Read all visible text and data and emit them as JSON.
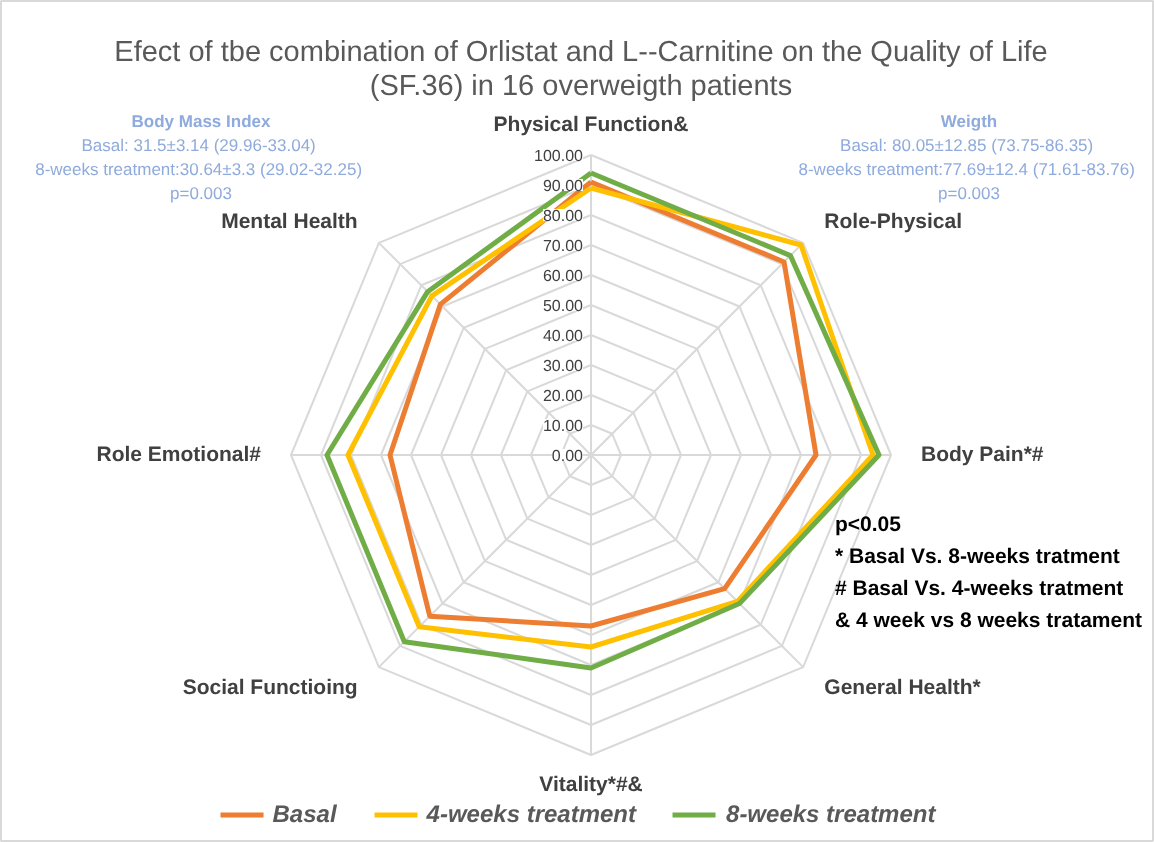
{
  "chart_data": {
    "type": "radar",
    "title": "Efect of tbe combination of Orlistat and L--Carnitine on the Quality of Life\n(SF.36) in 16 overweigth patients",
    "categories": [
      "Physical Function&",
      "Role-Physical",
      "Body Pain*#",
      "General Health*",
      "Vitality*#&",
      "Social Functioing",
      "Role Emotional#",
      "Mental Health"
    ],
    "series": [
      {
        "name": "Basal",
        "color": "#ed7d31",
        "values": [
          91,
          91,
          75,
          63,
          57,
          76,
          67,
          71
        ]
      },
      {
        "name": "4-weeks treatment",
        "color": "#ffc000",
        "values": [
          89,
          99,
          94,
          69,
          64,
          81,
          81,
          75
        ]
      },
      {
        "name": "8-weeks treatment",
        "color": "#70ad47",
        "values": [
          94,
          94,
          96,
          70,
          71,
          88,
          88,
          77
        ]
      }
    ],
    "ylim": [
      0,
      100
    ],
    "yticks": [
      {
        "value": 0,
        "label": "0.00"
      },
      {
        "value": 10,
        "label": "10.00"
      },
      {
        "value": 20,
        "label": "20.00"
      },
      {
        "value": 30,
        "label": "30.00"
      },
      {
        "value": 40,
        "label": "40.00"
      },
      {
        "value": 50,
        "label": "50.00"
      },
      {
        "value": 60,
        "label": "60.00"
      },
      {
        "value": 70,
        "label": "70.00"
      },
      {
        "value": 80,
        "label": "80.00"
      },
      {
        "value": 90,
        "label": "90.00"
      },
      {
        "value": 100,
        "label": "100.00"
      }
    ],
    "grid": true,
    "legend": "bottom",
    "marker": "none",
    "line_style": "solid",
    "annotations": [
      "Body Mass Index\nBasal: 31.5±3.14  (29.96-33.04)\n8-weeks treatment:30.64±3.3  (29.02-32.25)\np=0.003",
      "Weigth\nBasal: 80.05±12.85  (73.75-86.35)\n8-weeks treatment:77.69±12.4  (71.61-83.76)\np=0.003",
      "p<0.05\n*  Basal Vs. 8-weeks tratment\n#  Basal Vs. 4-weeks tratment\n& 4 week vs 8 weeks tratament"
    ]
  }
}
